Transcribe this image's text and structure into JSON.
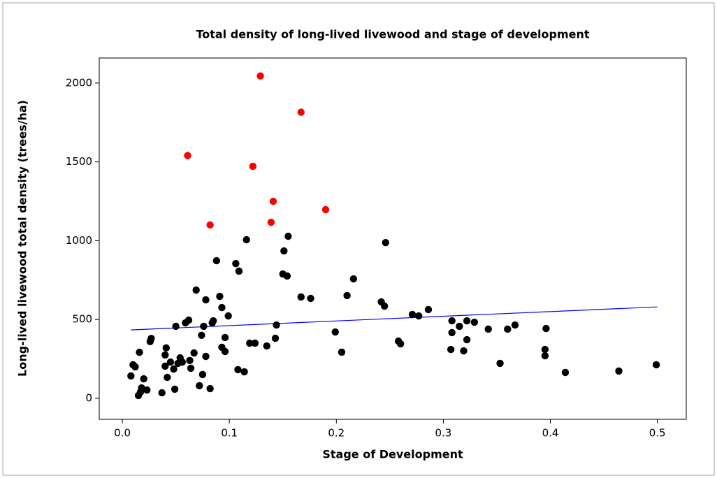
{
  "chart_data": {
    "type": "scatter",
    "title": "Total density of long-lived livewood and stage of development",
    "xlabel": "Stage of Development",
    "ylabel": "Long-lived livewood total density (trees/ha)",
    "xlim": [
      -0.0216,
      0.527
    ],
    "ylim": [
      -133,
      2159
    ],
    "xticks": [
      {
        "value": 0,
        "label": "0.0"
      },
      0.1,
      0.2,
      0.3,
      0.4,
      0.5
    ],
    "yticks": [
      0,
      500,
      1000,
      1500,
      2000
    ],
    "grid": false,
    "series": [
      {
        "color": "#000000",
        "x": [
          0.008,
          0.01,
          0.012,
          0.015,
          0.017,
          0.016,
          0.018,
          0.02,
          0.023,
          0.027,
          0.026,
          0.037,
          0.04,
          0.041,
          0.04,
          0.042,
          0.045,
          0.048,
          0.05,
          0.049,
          0.052,
          0.054,
          0.056,
          0.059,
          0.062,
          0.063,
          0.064,
          0.067,
          0.069,
          0.072,
          0.074,
          0.075,
          0.076,
          0.078,
          0.078,
          0.082,
          0.084,
          0.085,
          0.088,
          0.091,
          0.093,
          0.093,
          0.096,
          0.096,
          0.099,
          0.106,
          0.109,
          0.108,
          0.114,
          0.119,
          0.124,
          0.116,
          0.135,
          0.143,
          0.144,
          0.15,
          0.154,
          0.151,
          0.155,
          0.167,
          0.176,
          0.199,
          0.205,
          0.21,
          0.216,
          0.242,
          0.245,
          0.246,
          0.258,
          0.26,
          0.271,
          0.277,
          0.286,
          0.307,
          0.308,
          0.308,
          0.315,
          0.319,
          0.322,
          0.322,
          0.329,
          0.342,
          0.353,
          0.36,
          0.367,
          0.395,
          0.395,
          0.396,
          0.414,
          0.464,
          0.499
        ],
        "values": [
          142,
          213,
          200,
          18,
          40,
          292,
          66,
          124,
          53,
          380,
          360,
          35,
          275,
          320,
          204,
          133,
          230,
          186,
          457,
          58,
          222,
          257,
          230,
          479,
          496,
          240,
          191,
          288,
          687,
          80,
          400,
          151,
          457,
          625,
          266,
          62,
          479,
          492,
          873,
          647,
          576,
          324,
          386,
          297,
          523,
          855,
          807,
          182,
          168,
          350,
          350,
          1006,
          332,
          381,
          465,
          789,
          776,
          935,
          1028,
          643,
          634,
          421,
          293,
          652,
          758,
          612,
          585,
          988,
          363,
          346,
          532,
          523,
          563,
          310,
          417,
          492,
          457,
          301,
          492,
          372,
          483,
          439,
          222,
          439,
          465,
          310,
          270,
          443,
          164,
          173,
          213
        ]
      },
      {
        "color": "#ff0000",
        "x": [
          0.061,
          0.129,
          0.167,
          0.122,
          0.141,
          0.139,
          0.19,
          0.082
        ],
        "values": [
          1540,
          2045,
          1815,
          1472,
          1250,
          1117,
          1197,
          1100
        ]
      }
    ],
    "fit_line": {
      "color": "#0000ff",
      "x": [
        0.008,
        0.5
      ],
      "values": [
        434,
        580
      ]
    }
  }
}
